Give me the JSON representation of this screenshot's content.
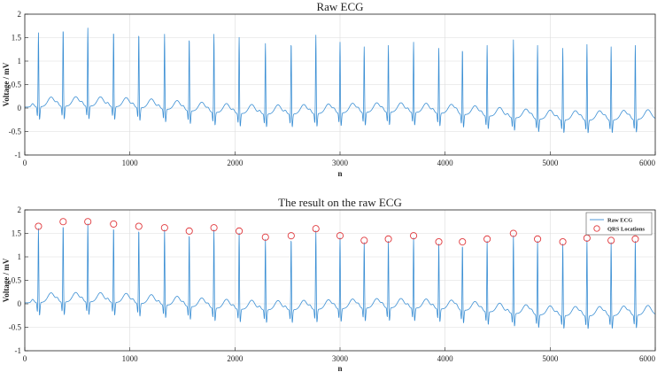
{
  "colors": {
    "signal": "#3b8fd4",
    "marker": "#e0393d",
    "grid": "#dcdcdc",
    "axis": "#222222"
  },
  "chart_data": [
    {
      "type": "line",
      "title": "Raw ECG",
      "xlabel": "n",
      "ylabel": "Voltage / mV",
      "xlim": [
        0,
        6000
      ],
      "ylim": [
        -1,
        2
      ],
      "xticks": [
        0,
        1000,
        2000,
        3000,
        4000,
        5000,
        6000
      ],
      "yticks": [
        -1,
        -0.5,
        0,
        0.5,
        1,
        1.5,
        2
      ],
      "xtick_labels": [
        "0",
        "1000",
        "2000",
        "3000",
        "4000",
        "5000",
        "6000"
      ],
      "ytick_labels": [
        "-1",
        "-0.5",
        "0",
        "0.5",
        "1",
        "1.5",
        "2"
      ],
      "grid": true,
      "series": [
        {
          "name": "Raw ECG",
          "r_peak_x": [
            130,
            365,
            600,
            845,
            1085,
            1330,
            1565,
            1800,
            2040,
            2290,
            2535,
            2770,
            3000,
            3230,
            3460,
            3700,
            3940,
            4165,
            4400,
            4650,
            4880,
            5120,
            5350,
            5580,
            5810
          ],
          "r_peak_y": [
            1.65,
            1.75,
            1.75,
            1.7,
            1.65,
            1.62,
            1.55,
            1.62,
            1.55,
            1.42,
            1.45,
            1.6,
            1.45,
            1.35,
            1.38,
            1.45,
            1.32,
            1.32,
            1.38,
            1.5,
            1.38,
            1.32,
            1.4,
            1.35,
            1.38
          ]
        }
      ]
    },
    {
      "type": "line",
      "title": "The result on the raw ECG",
      "xlabel": "n",
      "ylabel": "Voltage / mV",
      "xlim": [
        0,
        6000
      ],
      "ylim": [
        -1,
        2
      ],
      "xticks": [
        0,
        1000,
        2000,
        3000,
        4000,
        5000,
        6000
      ],
      "yticks": [
        -1,
        -0.5,
        0,
        0.5,
        1,
        1.5,
        2
      ],
      "xtick_labels": [
        "0",
        "1000",
        "2000",
        "3000",
        "4000",
        "5000",
        "6000"
      ],
      "ytick_labels": [
        "-1",
        "-0.5",
        "0",
        "0.5",
        "1",
        "1.5",
        "2"
      ],
      "grid": true,
      "legend_position": "top-right",
      "legend": [
        "Raw ECG",
        "QRS Locations"
      ],
      "series": [
        {
          "name": "Raw ECG",
          "r_peak_x": [
            130,
            365,
            600,
            845,
            1085,
            1330,
            1565,
            1800,
            2040,
            2290,
            2535,
            2770,
            3000,
            3230,
            3460,
            3700,
            3940,
            4165,
            4400,
            4650,
            4880,
            5120,
            5350,
            5580,
            5810
          ],
          "r_peak_y": [
            1.65,
            1.75,
            1.75,
            1.7,
            1.65,
            1.62,
            1.55,
            1.62,
            1.55,
            1.42,
            1.45,
            1.6,
            1.45,
            1.35,
            1.38,
            1.45,
            1.32,
            1.32,
            1.38,
            1.5,
            1.38,
            1.32,
            1.4,
            1.35,
            1.38
          ]
        },
        {
          "name": "QRS Locations",
          "x": [
            130,
            365,
            600,
            845,
            1085,
            1330,
            1565,
            1800,
            2040,
            2290,
            2535,
            2770,
            3000,
            3230,
            3460,
            3700,
            3940,
            4165,
            4400,
            4650,
            4880,
            5120,
            5350,
            5580,
            5810
          ],
          "y": [
            1.65,
            1.75,
            1.75,
            1.7,
            1.65,
            1.62,
            1.55,
            1.62,
            1.55,
            1.42,
            1.45,
            1.6,
            1.45,
            1.35,
            1.38,
            1.45,
            1.32,
            1.32,
            1.38,
            1.5,
            1.38,
            1.32,
            1.4,
            1.35,
            1.38
          ]
        }
      ]
    }
  ]
}
